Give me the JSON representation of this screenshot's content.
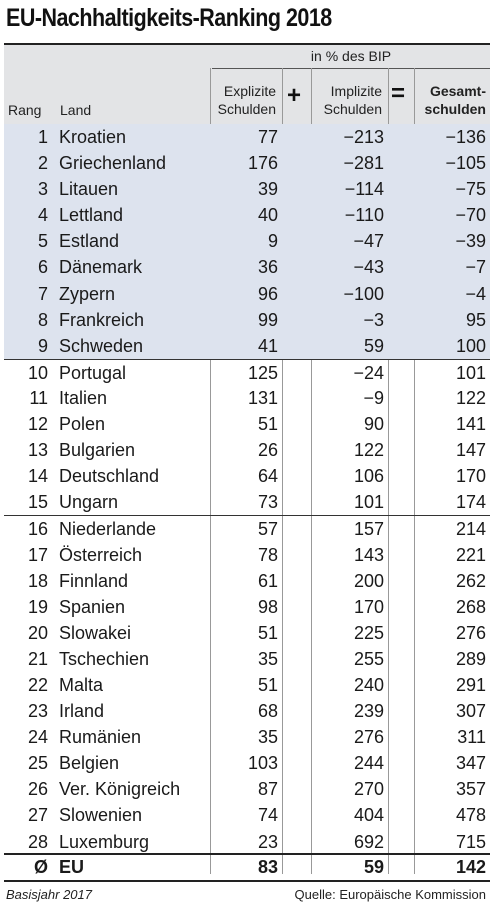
{
  "title": "EU-Nachhaltigkeits-Ranking 2018",
  "header": {
    "group": "in % des BIP",
    "rang": "Rang",
    "land": "Land",
    "explizite": "Explizite\nSchulden",
    "implizite": "Implizite\nSchulden",
    "gesamt": "Gesamt-\nschulden",
    "plus": "+",
    "equals": "="
  },
  "rows": [
    {
      "rang": "1",
      "land": "Kroatien",
      "explizit": "77",
      "implizit": "−213",
      "gesamt": "−136"
    },
    {
      "rang": "2",
      "land": "Griechenland",
      "explizit": "176",
      "implizit": "−281",
      "gesamt": "−105"
    },
    {
      "rang": "3",
      "land": "Litauen",
      "explizit": "39",
      "implizit": "−114",
      "gesamt": "−75"
    },
    {
      "rang": "4",
      "land": "Lettland",
      "explizit": "40",
      "implizit": "−110",
      "gesamt": "−70"
    },
    {
      "rang": "5",
      "land": "Estland",
      "explizit": "9",
      "implizit": "−47",
      "gesamt": "−39"
    },
    {
      "rang": "6",
      "land": "Dänemark",
      "explizit": "36",
      "implizit": "−43",
      "gesamt": "−7"
    },
    {
      "rang": "7",
      "land": "Zypern",
      "explizit": "96",
      "implizit": "−100",
      "gesamt": "−4"
    },
    {
      "rang": "8",
      "land": "Frankreich",
      "explizit": "99",
      "implizit": "−3",
      "gesamt": "95"
    },
    {
      "rang": "9",
      "land": "Schweden",
      "explizit": "41",
      "implizit": "59",
      "gesamt": "100"
    },
    {
      "rang": "10",
      "land": "Portugal",
      "explizit": "125",
      "implizit": "−24",
      "gesamt": "101"
    },
    {
      "rang": "11",
      "land": "Italien",
      "explizit": "131",
      "implizit": "−9",
      "gesamt": "122"
    },
    {
      "rang": "12",
      "land": "Polen",
      "explizit": "51",
      "implizit": "90",
      "gesamt": "141"
    },
    {
      "rang": "13",
      "land": "Bulgarien",
      "explizit": "26",
      "implizit": "122",
      "gesamt": "147"
    },
    {
      "rang": "14",
      "land": "Deutschland",
      "explizit": "64",
      "implizit": "106",
      "gesamt": "170"
    },
    {
      "rang": "15",
      "land": "Ungarn",
      "explizit": "73",
      "implizit": "101",
      "gesamt": "174"
    },
    {
      "rang": "16",
      "land": "Niederlande",
      "explizit": "57",
      "implizit": "157",
      "gesamt": "214"
    },
    {
      "rang": "17",
      "land": "Österreich",
      "explizit": "78",
      "implizit": "143",
      "gesamt": "221"
    },
    {
      "rang": "18",
      "land": "Finnland",
      "explizit": "61",
      "implizit": "200",
      "gesamt": "262"
    },
    {
      "rang": "19",
      "land": "Spanien",
      "explizit": "98",
      "implizit": "170",
      "gesamt": "268"
    },
    {
      "rang": "20",
      "land": "Slowakei",
      "explizit": "51",
      "implizit": "225",
      "gesamt": "276"
    },
    {
      "rang": "21",
      "land": "Tschechien",
      "explizit": "35",
      "implizit": "255",
      "gesamt": "289"
    },
    {
      "rang": "22",
      "land": "Malta",
      "explizit": "51",
      "implizit": "240",
      "gesamt": "291"
    },
    {
      "rang": "23",
      "land": "Irland",
      "explizit": "68",
      "implizit": "239",
      "gesamt": "307"
    },
    {
      "rang": "24",
      "land": "Rumänien",
      "explizit": "35",
      "implizit": "276",
      "gesamt": "311"
    },
    {
      "rang": "25",
      "land": "Belgien",
      "explizit": "103",
      "implizit": "244",
      "gesamt": "347"
    },
    {
      "rang": "26",
      "land": "Ver. Königreich",
      "explizit": "87",
      "implizit": "270",
      "gesamt": "357"
    },
    {
      "rang": "27",
      "land": "Slowenien",
      "explizit": "74",
      "implizit": "404",
      "gesamt": "478"
    },
    {
      "rang": "28",
      "land": "Luxemburg",
      "explizit": "23",
      "implizit": "692",
      "gesamt": "715"
    }
  ],
  "eu": {
    "rang": "Ø",
    "land": "EU",
    "explizit": "83",
    "implizit": "59",
    "gesamt": "142"
  },
  "footer": {
    "left": "Basisjahr 2017",
    "right": "Quelle: Europäische Kommission"
  },
  "colors": {
    "shaded_row": "#dde3ee",
    "header_bg": "#e3e4e6"
  }
}
